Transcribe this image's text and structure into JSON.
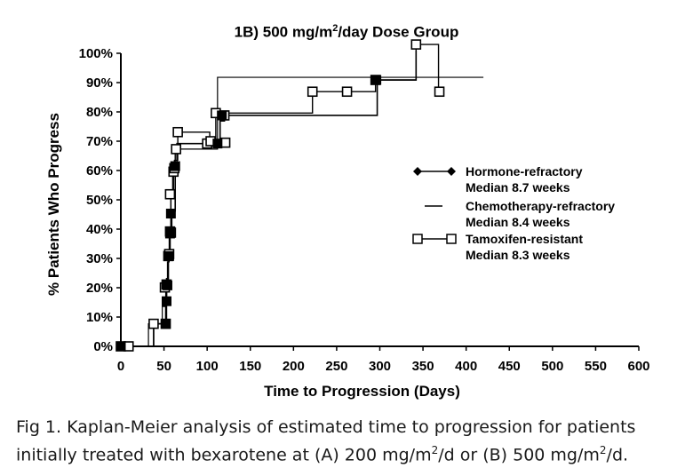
{
  "chart_data": {
    "type": "line",
    "title_prefix": "1B) 500 mg/m",
    "title_sup": "2",
    "title_suffix": "/day Dose Group",
    "xlabel": "Time to Progression (Days)",
    "ylabel": "% Patients Who Progress",
    "xlim": [
      0,
      600
    ],
    "ylim": [
      0,
      100
    ],
    "x_ticks": [
      0,
      50,
      100,
      150,
      200,
      250,
      300,
      350,
      400,
      450,
      500,
      550,
      600
    ],
    "y_ticks": [
      0,
      10,
      20,
      30,
      40,
      50,
      60,
      70,
      80,
      90,
      100
    ],
    "y_tick_labels": [
      "0%",
      "10%",
      "20%",
      "30%",
      "40%",
      "50%",
      "60%",
      "70%",
      "80%",
      "90%",
      "100%"
    ],
    "grid": false,
    "legend_position": "right",
    "series": [
      {
        "name": "Hormone-refractory",
        "median_label": "Median 8.7  weeks",
        "marker": "diamond",
        "points": [
          [
            0,
            0
          ],
          [
            35,
            0
          ],
          [
            38,
            7.7
          ],
          [
            50,
            7.7
          ],
          [
            52,
            15.4
          ],
          [
            53,
            23.1
          ],
          [
            55,
            30.8
          ],
          [
            57,
            38.5
          ],
          [
            59,
            46.2
          ],
          [
            63,
            61.5
          ],
          [
            65,
            69.2
          ],
          [
            100,
            69.2
          ],
          [
            112,
            69.2
          ],
          [
            115,
            76.9
          ],
          [
            120,
            78.8
          ],
          [
            295,
            78.8
          ],
          [
            297,
            90.9
          ],
          [
            340,
            90.9
          ],
          [
            342,
            100.9
          ]
        ]
      },
      {
        "name": "Chemotherapy-refractory",
        "median_label": "Median 8.4 weeks",
        "marker": "none",
        "points": [
          [
            0,
            0
          ],
          [
            30,
            0
          ],
          [
            32,
            7.7
          ],
          [
            46,
            7.7
          ],
          [
            48,
            13.6
          ],
          [
            50,
            13.6
          ],
          [
            52,
            19.2
          ],
          [
            54,
            28.8
          ],
          [
            56,
            38.5
          ],
          [
            58,
            51.9
          ],
          [
            60,
            58.5
          ],
          [
            62,
            63.5
          ],
          [
            66,
            67.3
          ],
          [
            100,
            67.3
          ],
          [
            108,
            67.3
          ],
          [
            112,
            91.8
          ],
          [
            420,
            91.8
          ]
        ]
      },
      {
        "name": "Tamoxifen-resistant",
        "median_label": "Median 8.3 weeks",
        "marker": "square",
        "points": [
          [
            0,
            0
          ],
          [
            8,
            0
          ],
          [
            10,
            0
          ],
          [
            35,
            0
          ],
          [
            38,
            7.7
          ],
          [
            51,
            7.7
          ],
          [
            53,
            20.1
          ],
          [
            55,
            30.8
          ],
          [
            57,
            39.2
          ],
          [
            58,
            51.9
          ],
          [
            61,
            59.6
          ],
          [
            63,
            67.3
          ],
          [
            66,
            73.1
          ],
          [
            100,
            73.1
          ],
          [
            103,
            69.2
          ],
          [
            110,
            79.6
          ],
          [
            120,
            79.6
          ],
          [
            220,
            79.6
          ],
          [
            222,
            86.9
          ],
          [
            260,
            86.9
          ],
          [
            293,
            86.9
          ],
          [
            295,
            90.9
          ],
          [
            340,
            90.9
          ],
          [
            342,
            103.0
          ],
          [
            365,
            103.0
          ],
          [
            368,
            86.9
          ],
          [
            370,
            86.9
          ]
        ]
      }
    ],
    "markers": {
      "diamond": [
        [
          0,
          0
        ],
        [
          52,
          7.7
        ],
        [
          53,
          15.4
        ],
        [
          54,
          20.8
        ],
        [
          56,
          30.8
        ],
        [
          57,
          38.5
        ],
        [
          58,
          45.3
        ],
        [
          63,
          61.5
        ],
        [
          112,
          69.2
        ],
        [
          117,
          78.8
        ],
        [
          296,
          90.9
        ]
      ],
      "square": [
        [
          0,
          0
        ],
        [
          9,
          0
        ],
        [
          38,
          7.7
        ],
        [
          52,
          7.7
        ],
        [
          51,
          20.1
        ],
        [
          53,
          21.1
        ],
        [
          55,
          30.8
        ],
        [
          56,
          31.5
        ],
        [
          57,
          39.2
        ],
        [
          58,
          38.8
        ],
        [
          57,
          51.9
        ],
        [
          61,
          59.6
        ],
        [
          62,
          60.8
        ],
        [
          64,
          67.3
        ],
        [
          66,
          73.1
        ],
        [
          100,
          69.2
        ],
        [
          104,
          70.0
        ],
        [
          110,
          79.6
        ],
        [
          120,
          78.8
        ],
        [
          121,
          69.5
        ],
        [
          222,
          86.9
        ],
        [
          262,
          86.9
        ],
        [
          295,
          90.9
        ],
        [
          342,
          103.0
        ],
        [
          369,
          86.9
        ]
      ]
    }
  },
  "caption": {
    "line1": "Fig 1.  Kaplan-Meier analysis of estimated time to progression for patients",
    "line2_a": "initially treated with bexarotene at (A) 200 mg/m",
    "line2_b": "2",
    "line2_c": "/d or (B) 500 mg/m",
    "line2_d": "2",
    "line2_e": "/d."
  }
}
